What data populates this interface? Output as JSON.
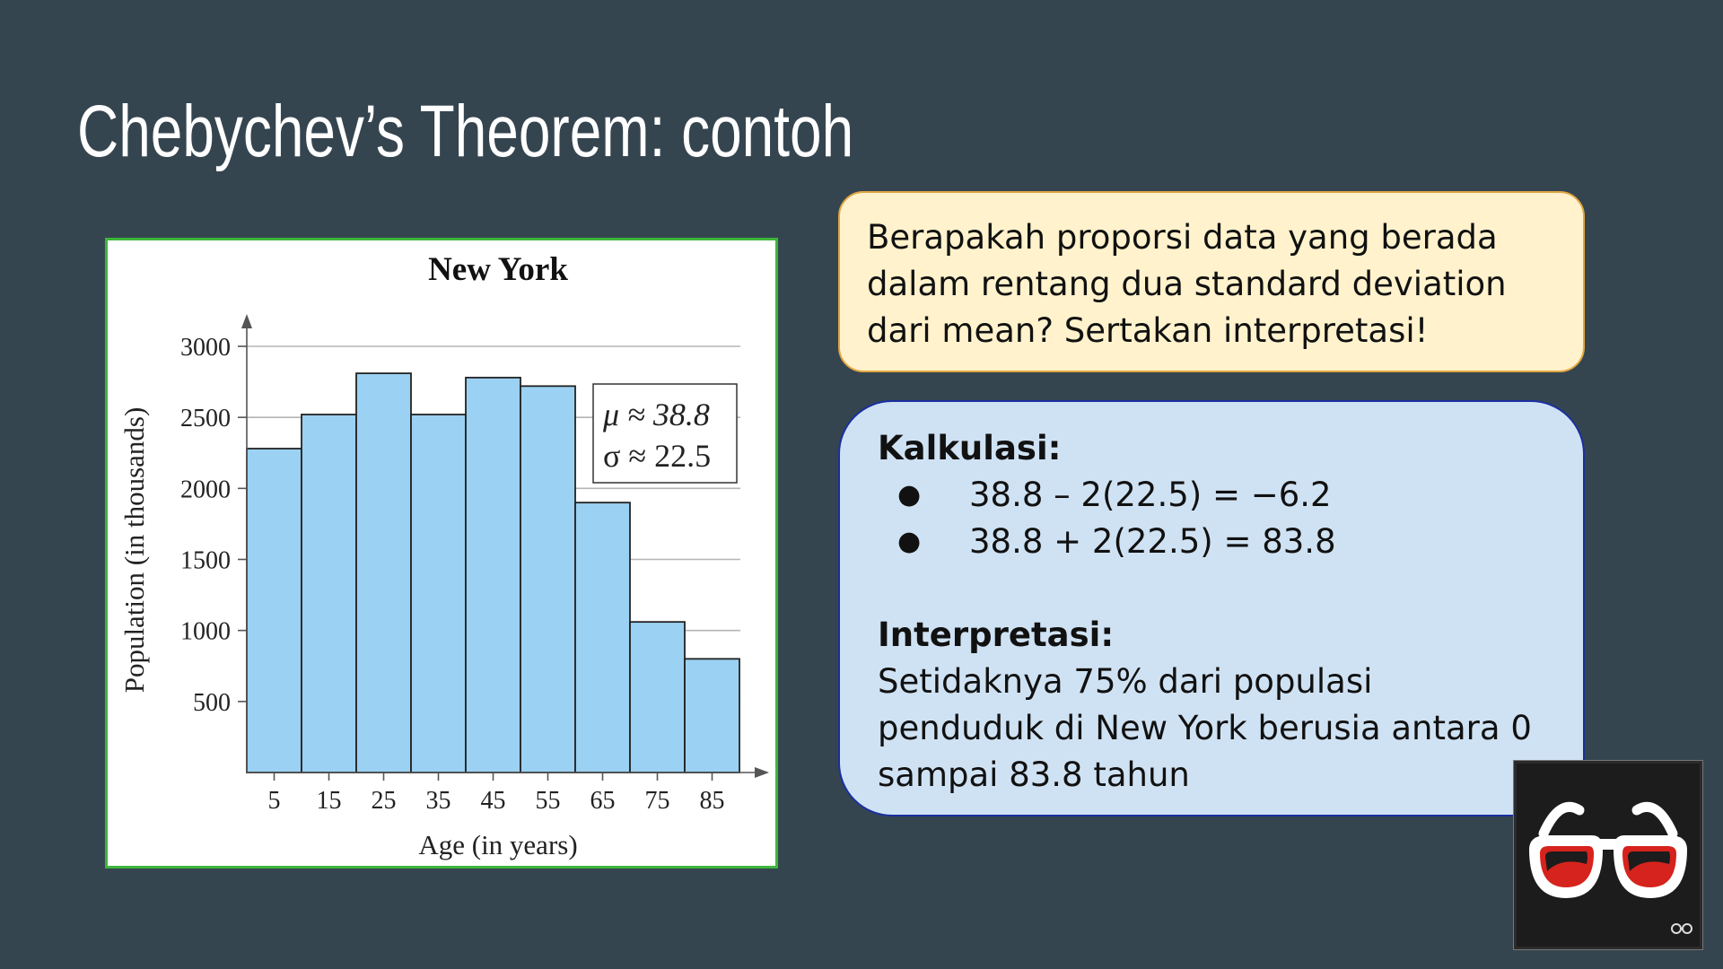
{
  "slide": {
    "title": "Chebychev’s Theorem: contoh"
  },
  "chart_data": {
    "type": "bar",
    "title": "New York",
    "xlabel": "Age (in years)",
    "ylabel": "Population (in thousands)",
    "categories": [
      "5",
      "15",
      "25",
      "35",
      "45",
      "55",
      "65",
      "75",
      "85"
    ],
    "values": [
      2280,
      2520,
      2810,
      2520,
      2780,
      2720,
      1900,
      1060,
      800
    ],
    "ylim": [
      0,
      3000
    ],
    "yticks": [
      500,
      1000,
      1500,
      2000,
      2500,
      3000
    ],
    "grid": true,
    "annotation": {
      "mu": "μ ≈ 38.8",
      "sigma": "σ ≈ 22.5"
    },
    "bar_color": "#9bd1f2"
  },
  "question": {
    "text": "Berapakah proporsi data yang berada dalam rentang dua standard deviation dari mean? Sertakan interpretasi!"
  },
  "calculation": {
    "heading": "Kalkulasi:",
    "items": [
      "38.8 – 2(22.5) = −6.2",
      "38.8 + 2(22.5) = 83.8"
    ],
    "interpretation_heading": "Interpretasi:",
    "interpretation_text": "Setidaknya 75% dari populasi penduduk di New York berusia antara 0 sampai 83.8 tahun"
  },
  "webcam": {
    "icon": "glasses-icon",
    "badge_icon": "glasses-small-icon"
  },
  "colors": {
    "background": "#354550",
    "question_bg": "#fff2cc",
    "question_border": "#e0a542",
    "calc_bg": "#cfe2f3",
    "calc_border": "#1a2fa0",
    "chart_border": "#3db63a"
  }
}
